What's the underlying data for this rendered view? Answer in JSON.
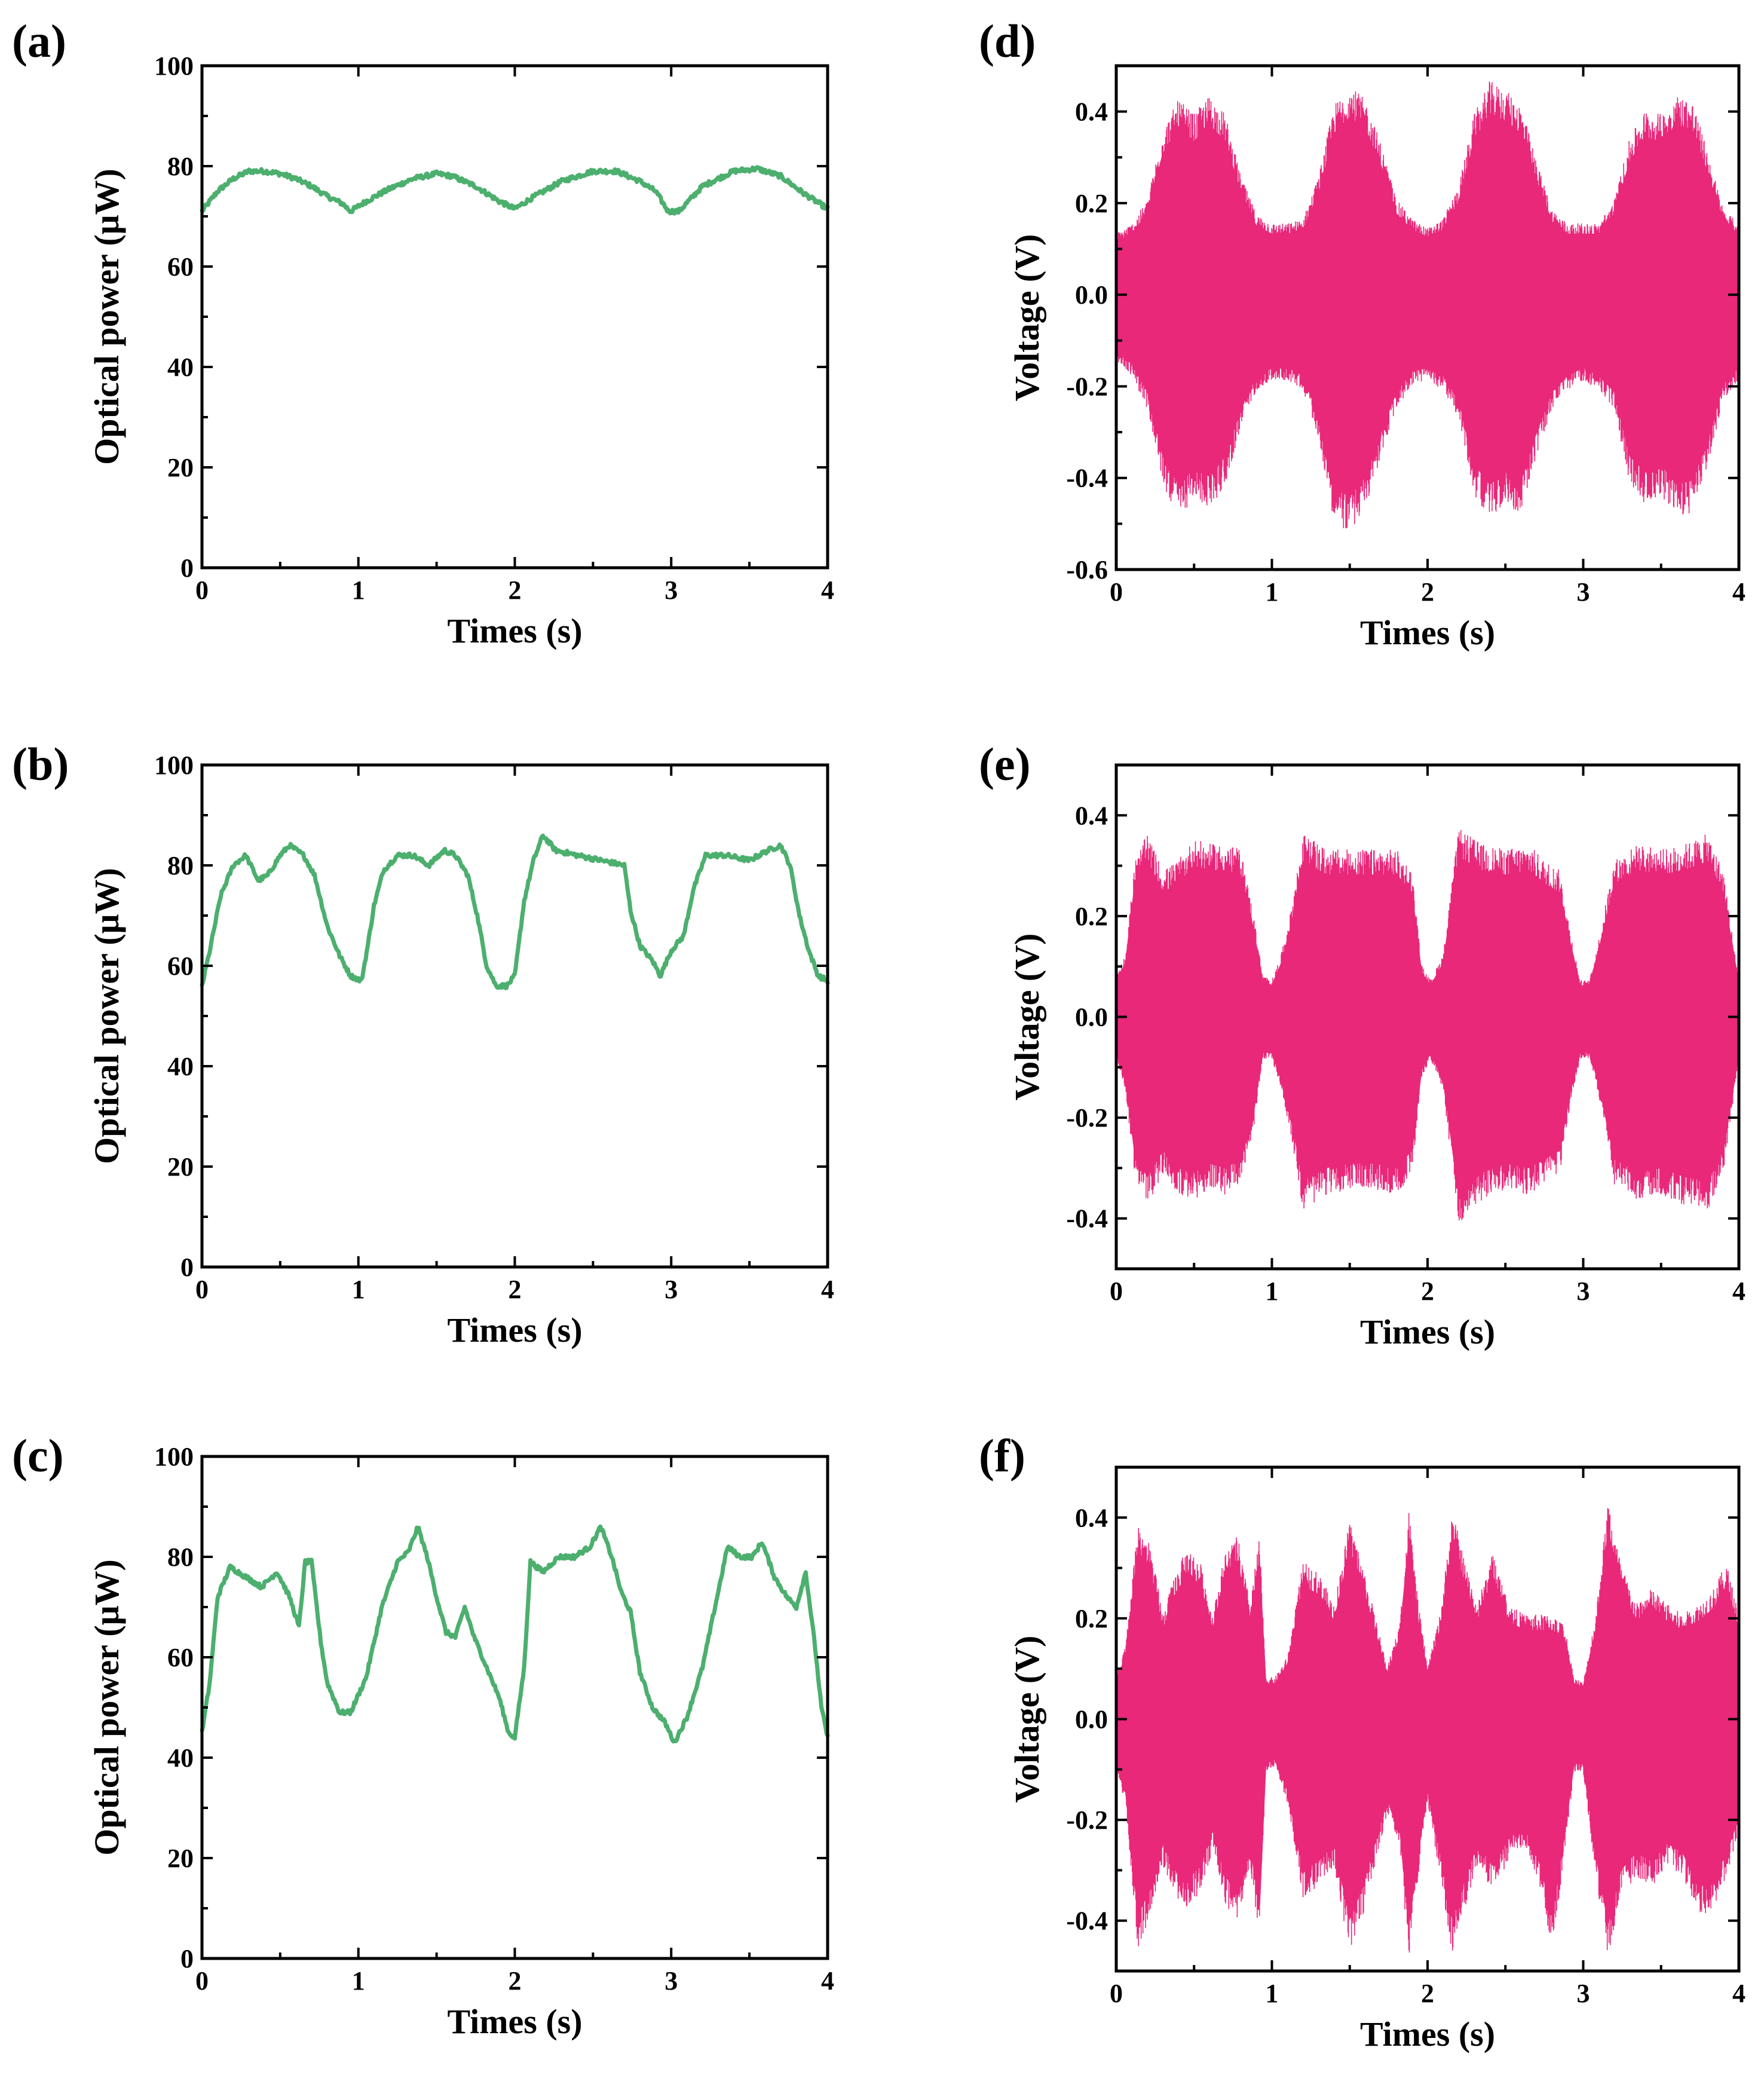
{
  "colors": {
    "power": "#4CAF6E",
    "voltage": "#E9287A"
  },
  "chart_data": [
    {
      "id": "a",
      "panel_label": "(a)",
      "type": "line",
      "xlabel": "Times (s)",
      "ylabel": "Optical power (μW)",
      "xlim": [
        0,
        4
      ],
      "ylim": [
        0,
        100
      ],
      "xticks": [
        0,
        1,
        2,
        3,
        4
      ],
      "yticks": [
        0,
        20,
        40,
        60,
        80,
        100
      ],
      "x": [
        0,
        0.1,
        0.2,
        0.3,
        0.4,
        0.5,
        0.6,
        0.7,
        0.8,
        0.9,
        0.95,
        1.05,
        1.2,
        1.35,
        1.5,
        1.6,
        1.75,
        1.9,
        2.0,
        2.1,
        2.3,
        2.5,
        2.65,
        2.8,
        2.9,
        2.98,
        3.05,
        3.2,
        3.4,
        3.55,
        3.7,
        3.85,
        4.0
      ],
      "series": [
        {
          "name": "optical power",
          "values": [
            71,
            75,
            77.5,
            79,
            79,
            78.5,
            77.5,
            76,
            74,
            72.5,
            71,
            73,
            75.5,
            77.5,
            78.5,
            78,
            76,
            73,
            71.5,
            73.5,
            77,
            79,
            79,
            77,
            75,
            71,
            71,
            76,
            79,
            79.5,
            78,
            74.5,
            71.5
          ]
        }
      ]
    },
    {
      "id": "b",
      "panel_label": "(b)",
      "type": "line",
      "xlabel": "Times (s)",
      "ylabel": "Optical power (μW)",
      "xlim": [
        0,
        4
      ],
      "ylim": [
        0,
        100
      ],
      "xticks": [
        0,
        1,
        2,
        3,
        4
      ],
      "yticks": [
        0,
        20,
        40,
        60,
        80,
        100
      ],
      "x": [
        0,
        0.05,
        0.12,
        0.2,
        0.28,
        0.36,
        0.42,
        0.5,
        0.56,
        0.65,
        0.72,
        0.8,
        0.88,
        0.95,
        1.02,
        1.06,
        1.1,
        1.16,
        1.25,
        1.35,
        1.45,
        1.55,
        1.62,
        1.7,
        1.76,
        1.82,
        1.88,
        1.95,
        2.0,
        2.06,
        2.12,
        2.18,
        2.26,
        2.4,
        2.55,
        2.7,
        2.74,
        2.8,
        2.88,
        2.93,
        3.0,
        3.08,
        3.14,
        3.22,
        3.35,
        3.5,
        3.62,
        3.7,
        3.76,
        3.82,
        3.88,
        3.94,
        4.0
      ],
      "series": [
        {
          "name": "optical power",
          "values": [
            56,
            63,
            74,
            80,
            82,
            77,
            78,
            82,
            84,
            82,
            78,
            68,
            62,
            58,
            57,
            64,
            72,
            79,
            82,
            82,
            80,
            83,
            82,
            78,
            70,
            60,
            56,
            56,
            58,
            73,
            81,
            86,
            83,
            82,
            81,
            80,
            71,
            64,
            61,
            58,
            63,
            66,
            75,
            82,
            82,
            81,
            83,
            84,
            80,
            70,
            63,
            58,
            57
          ]
        }
      ]
    },
    {
      "id": "c",
      "panel_label": "(c)",
      "type": "line",
      "xlabel": "Times (s)",
      "ylabel": "Optical power (μW)",
      "xlim": [
        0,
        4
      ],
      "ylim": [
        0,
        100
      ],
      "xticks": [
        0,
        1,
        2,
        3,
        4
      ],
      "yticks": [
        0,
        20,
        40,
        60,
        80,
        100
      ],
      "x": [
        0,
        0.05,
        0.1,
        0.18,
        0.28,
        0.38,
        0.48,
        0.56,
        0.62,
        0.66,
        0.7,
        0.76,
        0.8,
        0.88,
        0.95,
        1.05,
        1.15,
        1.25,
        1.32,
        1.38,
        1.44,
        1.5,
        1.56,
        1.62,
        1.68,
        1.74,
        1.82,
        1.9,
        1.96,
        2.0,
        2.06,
        2.1,
        2.18,
        2.28,
        2.38,
        2.48,
        2.55,
        2.62,
        2.68,
        2.74,
        2.8,
        2.88,
        2.96,
        3.02,
        3.1,
        3.2,
        3.28,
        3.36,
        3.44,
        3.52,
        3.58,
        3.66,
        3.74,
        3.8,
        3.86,
        3.92,
        3.96,
        4.0
      ],
      "series": [
        {
          "name": "optical power",
          "values": [
            45,
            55,
            72,
            78,
            76,
            74,
            77,
            72,
            66,
            79,
            79,
            63,
            55,
            49,
            49,
            56,
            70,
            79,
            81,
            86,
            80,
            72,
            65,
            64,
            70,
            64,
            58,
            52,
            45,
            44,
            58,
            79,
            77,
            80,
            80,
            82,
            86,
            80,
            73,
            69,
            57,
            50,
            47,
            43,
            48,
            58,
            70,
            82,
            80,
            80,
            83,
            76,
            72,
            70,
            77,
            62,
            50,
            44
          ]
        }
      ]
    },
    {
      "id": "d",
      "panel_label": "(d)",
      "type": "area",
      "xlabel": "Times (s)",
      "ylabel": "Voltage (V)",
      "xlim": [
        0,
        4
      ],
      "ylim": [
        -0.6,
        0.5
      ],
      "xticks": [
        0,
        1,
        2,
        3,
        4
      ],
      "yticks": [
        -0.6,
        -0.4,
        -0.2,
        0.0,
        0.2,
        0.4
      ],
      "x": [
        0,
        0.1,
        0.2,
        0.3,
        0.4,
        0.5,
        0.6,
        0.7,
        0.8,
        0.9,
        1.0,
        1.1,
        1.2,
        1.3,
        1.4,
        1.5,
        1.6,
        1.7,
        1.8,
        1.9,
        2.0,
        2.1,
        2.2,
        2.3,
        2.4,
        2.5,
        2.6,
        2.7,
        2.8,
        2.9,
        3.0,
        3.1,
        3.2,
        3.3,
        3.4,
        3.5,
        3.6,
        3.7,
        3.8,
        3.9,
        4.0
      ],
      "series": [
        {
          "name": "upper envelope",
          "values": [
            0.13,
            0.15,
            0.2,
            0.35,
            0.41,
            0.38,
            0.42,
            0.38,
            0.25,
            0.17,
            0.15,
            0.15,
            0.16,
            0.25,
            0.4,
            0.44,
            0.41,
            0.32,
            0.2,
            0.16,
            0.14,
            0.16,
            0.23,
            0.38,
            0.45,
            0.43,
            0.4,
            0.28,
            0.18,
            0.15,
            0.15,
            0.15,
            0.2,
            0.33,
            0.39,
            0.38,
            0.42,
            0.41,
            0.3,
            0.18,
            0.15
          ]
        },
        {
          "name": "lower envelope",
          "values": [
            -0.14,
            -0.17,
            -0.24,
            -0.4,
            -0.47,
            -0.43,
            -0.45,
            -0.4,
            -0.28,
            -0.2,
            -0.18,
            -0.18,
            -0.2,
            -0.3,
            -0.48,
            -0.5,
            -0.45,
            -0.34,
            -0.24,
            -0.19,
            -0.18,
            -0.2,
            -0.26,
            -0.42,
            -0.47,
            -0.44,
            -0.46,
            -0.34,
            -0.24,
            -0.2,
            -0.18,
            -0.2,
            -0.24,
            -0.4,
            -0.44,
            -0.42,
            -0.47,
            -0.46,
            -0.36,
            -0.22,
            -0.18
          ]
        }
      ]
    },
    {
      "id": "e",
      "panel_label": "(e)",
      "type": "area",
      "xlabel": "Times (s)",
      "ylabel": "Voltage (V)",
      "xlim": [
        0,
        4
      ],
      "ylim": [
        -0.5,
        0.5
      ],
      "xticks": [
        0,
        1,
        2,
        3,
        4
      ],
      "yticks": [
        -0.4,
        -0.2,
        0.0,
        0.2,
        0.4
      ],
      "x": [
        0,
        0.06,
        0.12,
        0.2,
        0.3,
        0.4,
        0.5,
        0.6,
        0.7,
        0.8,
        0.88,
        0.94,
        1.0,
        1.06,
        1.12,
        1.2,
        1.35,
        1.5,
        1.65,
        1.8,
        1.9,
        1.96,
        2.02,
        2.1,
        2.2,
        2.35,
        2.5,
        2.65,
        2.75,
        2.85,
        2.92,
        2.98,
        3.04,
        3.1,
        3.2,
        3.35,
        3.5,
        3.65,
        3.8,
        3.9,
        4.0
      ],
      "series": [
        {
          "name": "upper envelope",
          "values": [
            0.08,
            0.12,
            0.3,
            0.35,
            0.28,
            0.3,
            0.34,
            0.33,
            0.33,
            0.32,
            0.2,
            0.08,
            0.07,
            0.12,
            0.2,
            0.35,
            0.32,
            0.32,
            0.32,
            0.32,
            0.28,
            0.1,
            0.07,
            0.12,
            0.36,
            0.33,
            0.32,
            0.33,
            0.3,
            0.28,
            0.16,
            0.07,
            0.07,
            0.15,
            0.3,
            0.33,
            0.32,
            0.33,
            0.35,
            0.28,
            0.07
          ]
        },
        {
          "name": "lower envelope",
          "values": [
            -0.08,
            -0.14,
            -0.31,
            -0.36,
            -0.3,
            -0.34,
            -0.35,
            -0.33,
            -0.34,
            -0.32,
            -0.22,
            -0.08,
            -0.08,
            -0.14,
            -0.22,
            -0.37,
            -0.34,
            -0.33,
            -0.33,
            -0.34,
            -0.3,
            -0.12,
            -0.08,
            -0.14,
            -0.4,
            -0.35,
            -0.33,
            -0.34,
            -0.32,
            -0.3,
            -0.16,
            -0.08,
            -0.08,
            -0.15,
            -0.32,
            -0.35,
            -0.34,
            -0.36,
            -0.37,
            -0.3,
            -0.08
          ]
        }
      ]
    },
    {
      "id": "f",
      "panel_label": "(f)",
      "type": "area",
      "xlabel": "Times (s)",
      "ylabel": "Voltage (V)",
      "xlim": [
        0,
        4
      ],
      "ylim": [
        -0.5,
        0.5
      ],
      "xticks": [
        0,
        1,
        2,
        3,
        4
      ],
      "yticks": [
        -0.4,
        -0.2,
        0.0,
        0.2,
        0.4
      ],
      "x": [
        0,
        0.06,
        0.14,
        0.22,
        0.3,
        0.38,
        0.46,
        0.54,
        0.62,
        0.7,
        0.78,
        0.86,
        0.92,
        0.96,
        1.02,
        1.1,
        1.2,
        1.3,
        1.4,
        1.5,
        1.58,
        1.66,
        1.74,
        1.82,
        1.88,
        1.94,
        2.0,
        2.08,
        2.16,
        2.24,
        2.32,
        2.42,
        2.52,
        2.62,
        2.72,
        2.8,
        2.88,
        2.94,
        3.0,
        3.08,
        3.16,
        3.24,
        3.34,
        3.44,
        3.54,
        3.64,
        3.74,
        3.84,
        3.92,
        4.0
      ],
      "series": [
        {
          "name": "upper envelope",
          "values": [
            0.08,
            0.14,
            0.38,
            0.33,
            0.2,
            0.28,
            0.33,
            0.3,
            0.2,
            0.32,
            0.35,
            0.22,
            0.35,
            0.08,
            0.08,
            0.12,
            0.3,
            0.28,
            0.22,
            0.38,
            0.3,
            0.2,
            0.1,
            0.18,
            0.4,
            0.22,
            0.1,
            0.2,
            0.4,
            0.3,
            0.22,
            0.32,
            0.22,
            0.2,
            0.2,
            0.2,
            0.18,
            0.08,
            0.07,
            0.2,
            0.42,
            0.3,
            0.22,
            0.25,
            0.22,
            0.2,
            0.22,
            0.25,
            0.3,
            0.2
          ]
        },
        {
          "name": "lower envelope",
          "values": [
            -0.1,
            -0.16,
            -0.44,
            -0.38,
            -0.28,
            -0.34,
            -0.36,
            -0.33,
            -0.25,
            -0.35,
            -0.4,
            -0.28,
            -0.42,
            -0.1,
            -0.09,
            -0.16,
            -0.34,
            -0.32,
            -0.28,
            -0.45,
            -0.38,
            -0.28,
            -0.18,
            -0.24,
            -0.46,
            -0.3,
            -0.16,
            -0.3,
            -0.45,
            -0.36,
            -0.28,
            -0.33,
            -0.27,
            -0.24,
            -0.32,
            -0.44,
            -0.26,
            -0.1,
            -0.1,
            -0.3,
            -0.46,
            -0.34,
            -0.3,
            -0.32,
            -0.28,
            -0.3,
            -0.38,
            -0.36,
            -0.3,
            -0.22
          ]
        }
      ]
    }
  ]
}
